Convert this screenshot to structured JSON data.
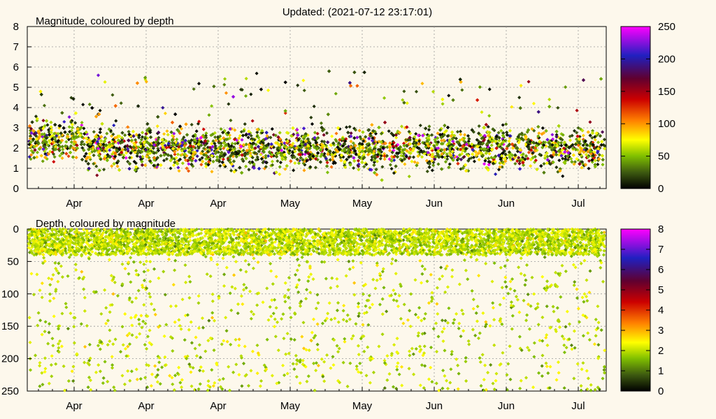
{
  "header": {
    "updated": "Updated: (2021-07-12 23:17:01)"
  },
  "chart_data": [
    {
      "type": "scatter",
      "title": "Magnitude, coloured by depth",
      "xlabel": "",
      "ylabel": "",
      "ylim": [
        0,
        8
      ],
      "y_ticks": [
        "0",
        "1",
        "2",
        "3",
        "4",
        "5",
        "6",
        "7",
        "8"
      ],
      "x_tick_labels": [
        "Apr",
        "Apr",
        "Apr",
        "May",
        "May",
        "Jun",
        "Jun",
        "Jul"
      ],
      "grid": true,
      "colorbar": {
        "range": [
          0,
          250
        ],
        "ticks": [
          "0",
          "50",
          "100",
          "150",
          "200",
          "250"
        ]
      },
      "point_count": 5000,
      "value_summary": "Magnitudes mostly 0.5–3.5, densest around 2; sparse points 4–6"
    },
    {
      "type": "scatter",
      "title": "Depth, coloured by magnitude",
      "xlabel": "",
      "ylabel": "",
      "ylim": [
        0,
        250
      ],
      "y_reversed": true,
      "y_ticks": [
        "0",
        "50",
        "100",
        "150",
        "200",
        "250"
      ],
      "x_tick_labels": [
        "Apr",
        "Apr",
        "Apr",
        "May",
        "May",
        "Jun",
        "Jun",
        "Jul"
      ],
      "grid": true,
      "colorbar": {
        "range": [
          0,
          8
        ],
        "ticks": [
          "0",
          "1",
          "2",
          "3",
          "4",
          "5",
          "6",
          "7",
          "8"
        ]
      },
      "point_count": 5000,
      "value_summary": "Depths concentrated 0–40, sparse scatter down to 250"
    }
  ],
  "colors": {
    "background": "#fdf8ec",
    "palette": [
      "#000000",
      "#3d5a10",
      "#7fbf00",
      "#ffff00",
      "#ff8000",
      "#cc0000",
      "#2020c0",
      "#ff00ff"
    ]
  }
}
